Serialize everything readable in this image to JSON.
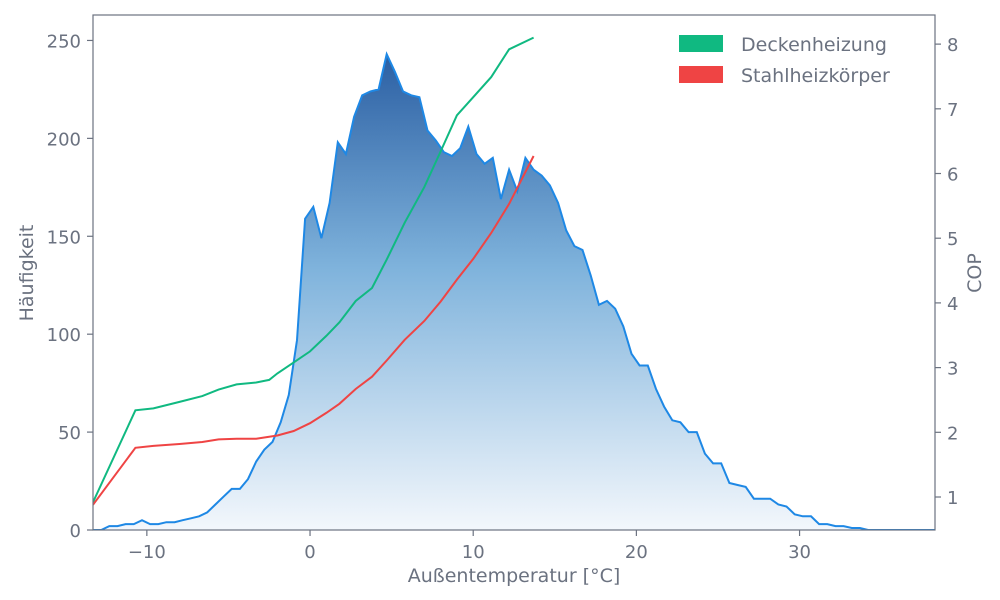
{
  "colors": {
    "histogram_line": "#1e88e5",
    "histogram_fill_top": "#2b5fa3",
    "histogram_fill_bottom": "#f3f7fc",
    "deckenheizung": "#10b981",
    "stahlheizkoerper": "#ef4444",
    "axis": "#6b7280"
  },
  "chart_data": {
    "type": "area",
    "title": "",
    "xlabel": "Außentemperatur [°C]",
    "ylabel": "Häufigkeit",
    "ylabel_right": "COP",
    "xlim": [
      -13.3,
      38.3
    ],
    "ylim": [
      0,
      263
    ],
    "ylim_right": [
      0.49,
      8.45
    ],
    "x_ticks": [
      -10,
      0,
      10,
      20,
      30
    ],
    "x_tick_labels": [
      "−10",
      "0",
      "10",
      "20",
      "30"
    ],
    "y_ticks": [
      0,
      50,
      100,
      150,
      200,
      250
    ],
    "y_tick_labels": [
      "0",
      "50",
      "100",
      "150",
      "200",
      "250"
    ],
    "y_right_ticks": [
      1,
      2,
      3,
      4,
      5,
      6,
      7,
      8
    ],
    "y_right_tick_labels": [
      "1",
      "2",
      "3",
      "4",
      "5",
      "6",
      "7",
      "8"
    ],
    "grid": false,
    "legend_position": "top-right",
    "histogram": {
      "x": [
        -13.3,
        -12.8,
        -12.3,
        -11.8,
        -11.3,
        -10.8,
        -10.3,
        -9.8,
        -9.3,
        -8.8,
        -8.3,
        -7.8,
        -7.3,
        -6.8,
        -6.3,
        -5.8,
        -5.3,
        -4.8,
        -4.3,
        -3.8,
        -3.3,
        -2.8,
        -2.3,
        -1.8,
        -1.3,
        -0.8,
        -0.3,
        0.2,
        0.7,
        1.2,
        1.7,
        2.2,
        2.7,
        3.2,
        3.7,
        4.2,
        4.7,
        5.2,
        5.7,
        6.2,
        6.7,
        7.2,
        7.7,
        8.2,
        8.7,
        9.2,
        9.7,
        10.2,
        10.7,
        11.2,
        11.7,
        12.2,
        12.7,
        13.2,
        13.7,
        14.2,
        14.7,
        15.2,
        15.7,
        16.2,
        16.7,
        17.2,
        17.7,
        18.2,
        18.7,
        19.2,
        19.7,
        20.2,
        20.7,
        21.2,
        21.7,
        22.2,
        22.7,
        23.2,
        23.7,
        24.2,
        24.7,
        25.2,
        25.7,
        26.2,
        26.7,
        27.2,
        27.7,
        28.2,
        28.7,
        29.2,
        29.7,
        30.2,
        30.7,
        31.2,
        31.7,
        32.2,
        32.7,
        33.2,
        33.7,
        34.2,
        34.7,
        35.2,
        35.7,
        36.2,
        36.7,
        37.2,
        37.7,
        38.3
      ],
      "values": [
        0,
        0,
        2,
        2,
        3,
        3,
        5,
        3,
        3,
        4,
        4,
        5,
        6,
        7,
        9,
        13,
        17,
        21,
        21,
        26,
        35,
        41,
        45,
        55,
        69,
        97,
        159,
        165,
        149,
        167,
        198,
        192,
        211,
        222,
        224,
        225,
        243,
        234,
        224,
        222,
        221,
        204,
        199,
        193,
        191,
        195,
        206,
        192,
        187,
        190,
        169,
        184,
        173,
        190,
        184,
        181,
        176,
        167,
        153,
        145,
        143,
        130,
        115,
        117,
        113,
        104,
        90,
        84,
        84,
        72,
        63,
        56,
        55,
        50,
        50,
        39,
        34,
        34,
        24,
        23,
        22,
        16,
        16,
        16,
        13,
        12,
        8,
        7,
        7,
        3,
        3,
        2,
        2,
        1,
        1,
        0,
        0,
        0,
        0,
        0,
        0,
        0,
        0,
        0
      ]
    },
    "series": [
      {
        "name": "Deckenheizung",
        "x": [
          -13.3,
          -10.7,
          -9.6,
          -8.0,
          -6.6,
          -5.6,
          -4.5,
          -3.3,
          -2.5,
          -2.0,
          -1.0,
          0.0,
          1.0,
          1.8,
          2.8,
          3.8,
          4.7,
          5.8,
          7.0,
          8.0,
          9.0,
          10.0,
          11.1,
          12.2,
          13.7
        ],
        "values": [
          0.92,
          2.34,
          2.37,
          2.47,
          2.56,
          2.66,
          2.74,
          2.77,
          2.81,
          2.91,
          3.08,
          3.25,
          3.49,
          3.7,
          4.03,
          4.23,
          4.67,
          5.24,
          5.79,
          6.34,
          6.9,
          7.18,
          7.49,
          7.92,
          8.1
        ]
      },
      {
        "name": "Stahlheizkörper",
        "x": [
          -13.3,
          -10.7,
          -9.6,
          -8.0,
          -6.6,
          -5.6,
          -4.5,
          -3.3,
          -2.5,
          -2.0,
          -1.0,
          0.0,
          1.0,
          1.8,
          2.8,
          3.8,
          4.7,
          5.8,
          7.0,
          8.0,
          9.0,
          10.0,
          11.1,
          12.2,
          13.7
        ],
        "values": [
          0.88,
          1.76,
          1.79,
          1.82,
          1.85,
          1.89,
          1.9,
          1.9,
          1.93,
          1.95,
          2.02,
          2.14,
          2.3,
          2.44,
          2.67,
          2.86,
          3.11,
          3.43,
          3.72,
          4.02,
          4.36,
          4.68,
          5.08,
          5.53,
          6.27
        ]
      }
    ]
  }
}
